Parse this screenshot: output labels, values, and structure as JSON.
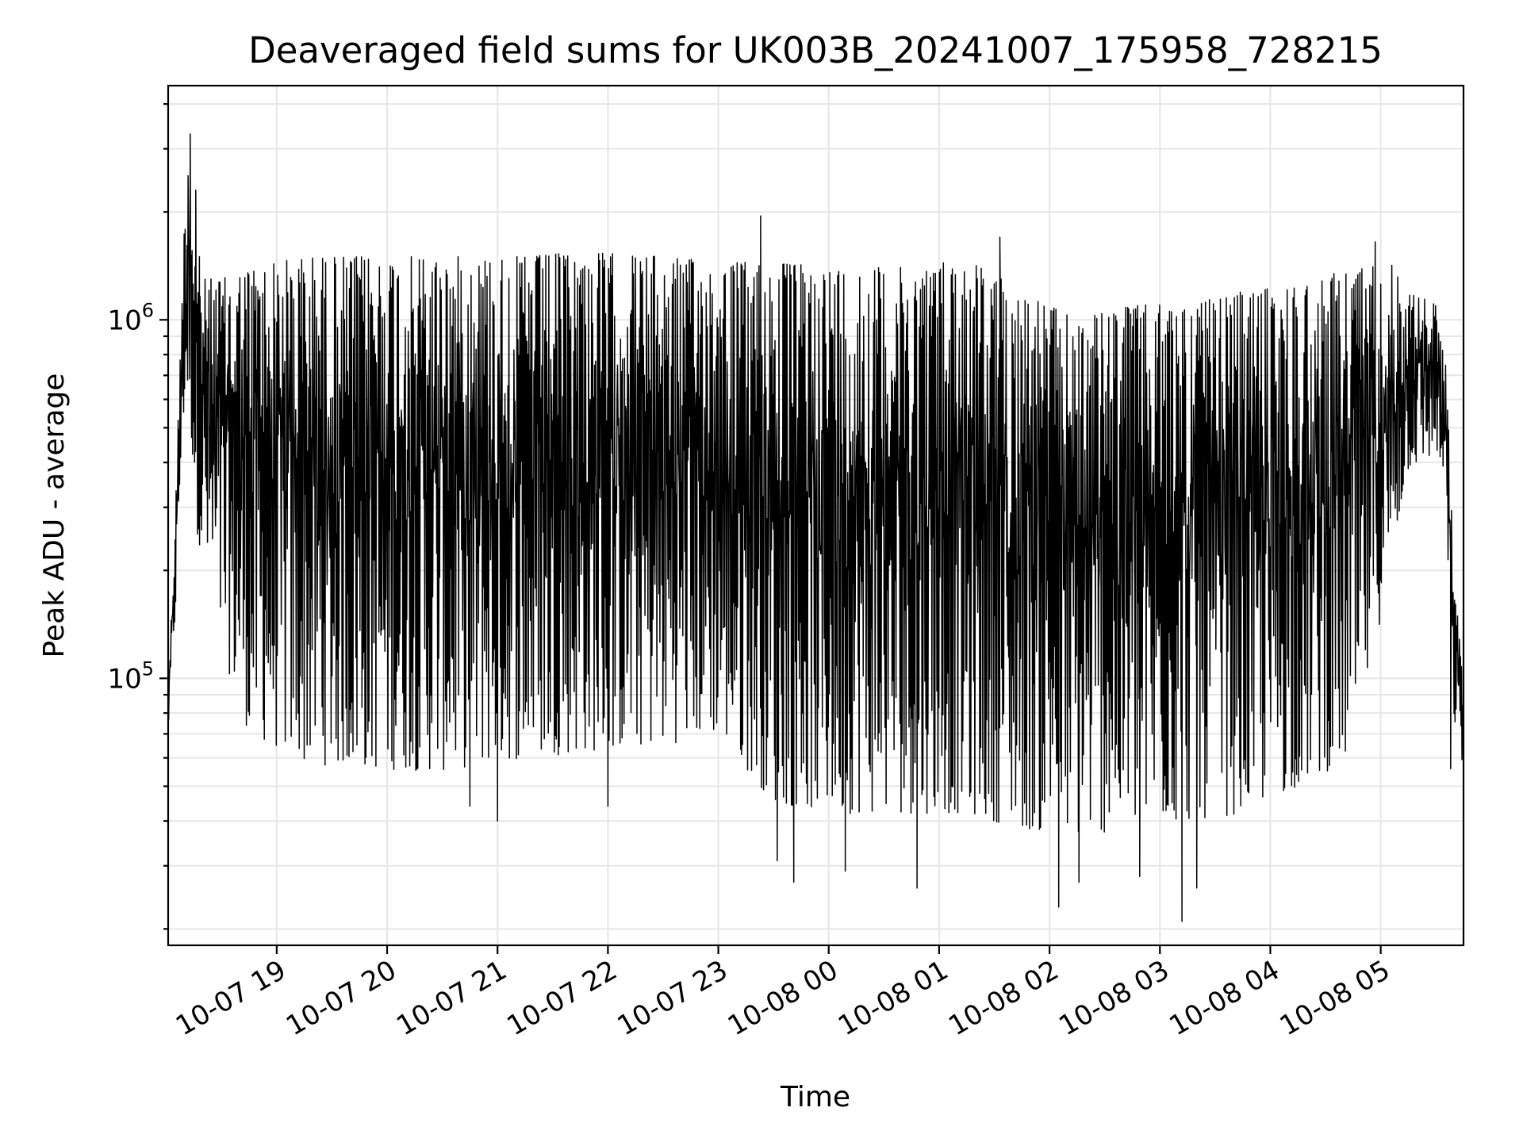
{
  "chart_data": {
    "type": "line",
    "title": "Deaveraged field sums for UK003B_20241007_175958_728215",
    "xlabel": "Time",
    "ylabel": "Peak ADU - average",
    "yscale": "log",
    "grid": true,
    "line_color": "#000000",
    "x_ticks": [
      "10-07 19",
      "10-07 20",
      "10-07 21",
      "10-07 22",
      "10-07 23",
      "10-08 00",
      "10-08 01",
      "10-08 02",
      "10-08 03",
      "10-08 04",
      "10-08 05"
    ],
    "x_ticks_time": [
      "2024-10-07 19:00",
      "2024-10-07 20:00",
      "2024-10-07 21:00",
      "2024-10-07 22:00",
      "2024-10-07 23:00",
      "2024-10-08 00:00",
      "2024-10-08 01:00",
      "2024-10-08 02:00",
      "2024-10-08 03:00",
      "2024-10-08 04:00",
      "2024-10-08 05:00"
    ],
    "xlim": [
      "2024-10-07 18:01",
      "2024-10-08 05:45"
    ],
    "y_ticks": [
      {
        "base": "10",
        "exp": "5",
        "value": 100000
      },
      {
        "base": "10",
        "exp": "6",
        "value": 1000000
      }
    ],
    "ylim": [
      18000,
      4500000
    ],
    "series": [
      {
        "style": "oscillating",
        "points": [
          {
            "x": "2024-10-07 18:01",
            "upper": 90000,
            "lower": 70000
          },
          {
            "x": "2024-10-07 18:05",
            "upper": 300000,
            "lower": 150000
          },
          {
            "x": "2024-10-07 18:09",
            "upper": 1500000,
            "lower": 500000
          },
          {
            "x": "2024-10-07 18:12",
            "upper": 3300000,
            "lower": 600000
          },
          {
            "x": "2024-10-07 18:17",
            "upper": 1300000,
            "lower": 250000
          },
          {
            "x": "2024-10-07 18:30",
            "upper": 1300000,
            "lower": 120000
          },
          {
            "x": "2024-10-07 18:45",
            "upper": 1400000,
            "lower": 70000
          },
          {
            "x": "2024-10-07 19:15",
            "upper": 1500000,
            "lower": 58000
          },
          {
            "x": "2024-10-07 19:45",
            "upper": 1500000,
            "lower": 56000
          },
          {
            "x": "2024-10-07 20:30",
            "upper": 1500000,
            "lower": 55000
          },
          {
            "x": "2024-10-07 21:15",
            "upper": 1500000,
            "lower": 60000
          },
          {
            "x": "2024-10-07 21:45",
            "upper": 1550000,
            "lower": 62000
          },
          {
            "x": "2024-10-07 22:30",
            "upper": 1500000,
            "lower": 65000
          },
          {
            "x": "2024-10-07 23:00",
            "upper": 1450000,
            "lower": 70000
          },
          {
            "x": "2024-10-07 23:30",
            "upper": 1450000,
            "lower": 45000
          },
          {
            "x": "2024-10-08 00:00",
            "upper": 1400000,
            "lower": 42000
          },
          {
            "x": "2024-10-08 00:45",
            "upper": 1400000,
            "lower": 42000
          },
          {
            "x": "2024-10-08 01:15",
            "upper": 1500000,
            "lower": 42000
          },
          {
            "x": "2024-10-08 01:45",
            "upper": 1200000,
            "lower": 38000
          },
          {
            "x": "2024-10-08 02:15",
            "upper": 1000000,
            "lower": 36000
          },
          {
            "x": "2024-10-08 02:45",
            "upper": 1100000,
            "lower": 38000
          },
          {
            "x": "2024-10-08 03:15",
            "upper": 1100000,
            "lower": 40000
          },
          {
            "x": "2024-10-08 03:45",
            "upper": 1200000,
            "lower": 42000
          },
          {
            "x": "2024-10-08 04:15",
            "upper": 1250000,
            "lower": 50000
          },
          {
            "x": "2024-10-08 04:45",
            "upper": 1400000,
            "lower": 60000
          },
          {
            "x": "2024-10-08 05:05",
            "upper": 1450000,
            "lower": 200000
          },
          {
            "x": "2024-10-08 05:15",
            "upper": 1200000,
            "lower": 380000
          },
          {
            "x": "2024-10-08 05:31",
            "upper": 1100000,
            "lower": 420000
          },
          {
            "x": "2024-10-08 05:36",
            "upper": 700000,
            "lower": 250000
          },
          {
            "x": "2024-10-08 05:39",
            "upper": 250000,
            "lower": 80000
          },
          {
            "x": "2024-10-08 05:45",
            "upper": 90000,
            "lower": 55000
          }
        ],
        "spikes": [
          {
            "x": "2024-10-07 18:13",
            "value": 3300000
          },
          {
            "x": "2024-10-07 18:16",
            "value": 2300000
          },
          {
            "x": "2024-10-07 18:18",
            "value": 1500000
          },
          {
            "x": "2024-10-07 20:45",
            "value": 44000
          },
          {
            "x": "2024-10-07 21:00",
            "value": 40000
          },
          {
            "x": "2024-10-07 22:00",
            "value": 44000
          },
          {
            "x": "2024-10-07 23:23",
            "value": 1950000
          },
          {
            "x": "2024-10-07 23:32",
            "value": 31000
          },
          {
            "x": "2024-10-07 23:41",
            "value": 27000
          },
          {
            "x": "2024-10-08 00:09",
            "value": 29000
          },
          {
            "x": "2024-10-08 00:48",
            "value": 26000
          },
          {
            "x": "2024-10-08 01:33",
            "value": 1700000
          },
          {
            "x": "2024-10-08 02:05",
            "value": 23000
          },
          {
            "x": "2024-10-08 02:16",
            "value": 27000
          },
          {
            "x": "2024-10-08 02:49",
            "value": 28000
          },
          {
            "x": "2024-10-08 03:12",
            "value": 21000
          },
          {
            "x": "2024-10-08 03:20",
            "value": 26000
          },
          {
            "x": "2024-10-08 04:57",
            "value": 1650000
          },
          {
            "x": "2024-10-08 05:38",
            "value": 56000
          }
        ]
      }
    ]
  }
}
